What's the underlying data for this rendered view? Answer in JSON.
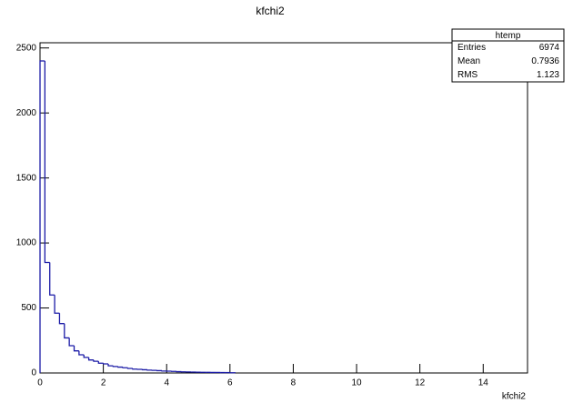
{
  "chart_data": {
    "type": "histogram",
    "title": "kfchi2",
    "x_label": "kfchi2",
    "color": "#1a1aa6",
    "bins": [
      0,
      0.154,
      0.308,
      0.462,
      0.616,
      0.77,
      0.924,
      1.078,
      1.232,
      1.386,
      1.54,
      1.694,
      1.848,
      2.002,
      2.156,
      2.31,
      2.464,
      2.618,
      2.772,
      2.926,
      3.08,
      3.234,
      3.388,
      3.542,
      3.696,
      3.85,
      4.004,
      4.158,
      4.312,
      4.466,
      4.62,
      4.774,
      4.928,
      5.082,
      5.236,
      5.39,
      5.544,
      5.698,
      5.852,
      6.006,
      6.16
    ],
    "values": [
      2400,
      850,
      600,
      460,
      380,
      270,
      210,
      170,
      140,
      120,
      100,
      90,
      75,
      70,
      55,
      50,
      45,
      40,
      35,
      30,
      28,
      25,
      22,
      20,
      18,
      15,
      14,
      12,
      10,
      9,
      8,
      7,
      6,
      5,
      5,
      4,
      4,
      3,
      3,
      2
    ],
    "xlim": [
      0,
      15.4
    ],
    "ylim": [
      0,
      2540
    ],
    "xticks": [
      0,
      2,
      4,
      6,
      8,
      10,
      12,
      14
    ],
    "yticks": [
      0,
      500,
      1000,
      1500,
      2000,
      2500
    ],
    "stats": {
      "title": "htemp",
      "rows": [
        {
          "label": "Entries",
          "value": 6974
        },
        {
          "label": "Mean",
          "value": 0.7936
        },
        {
          "label": "RMS",
          "value": 1.123
        }
      ]
    }
  }
}
